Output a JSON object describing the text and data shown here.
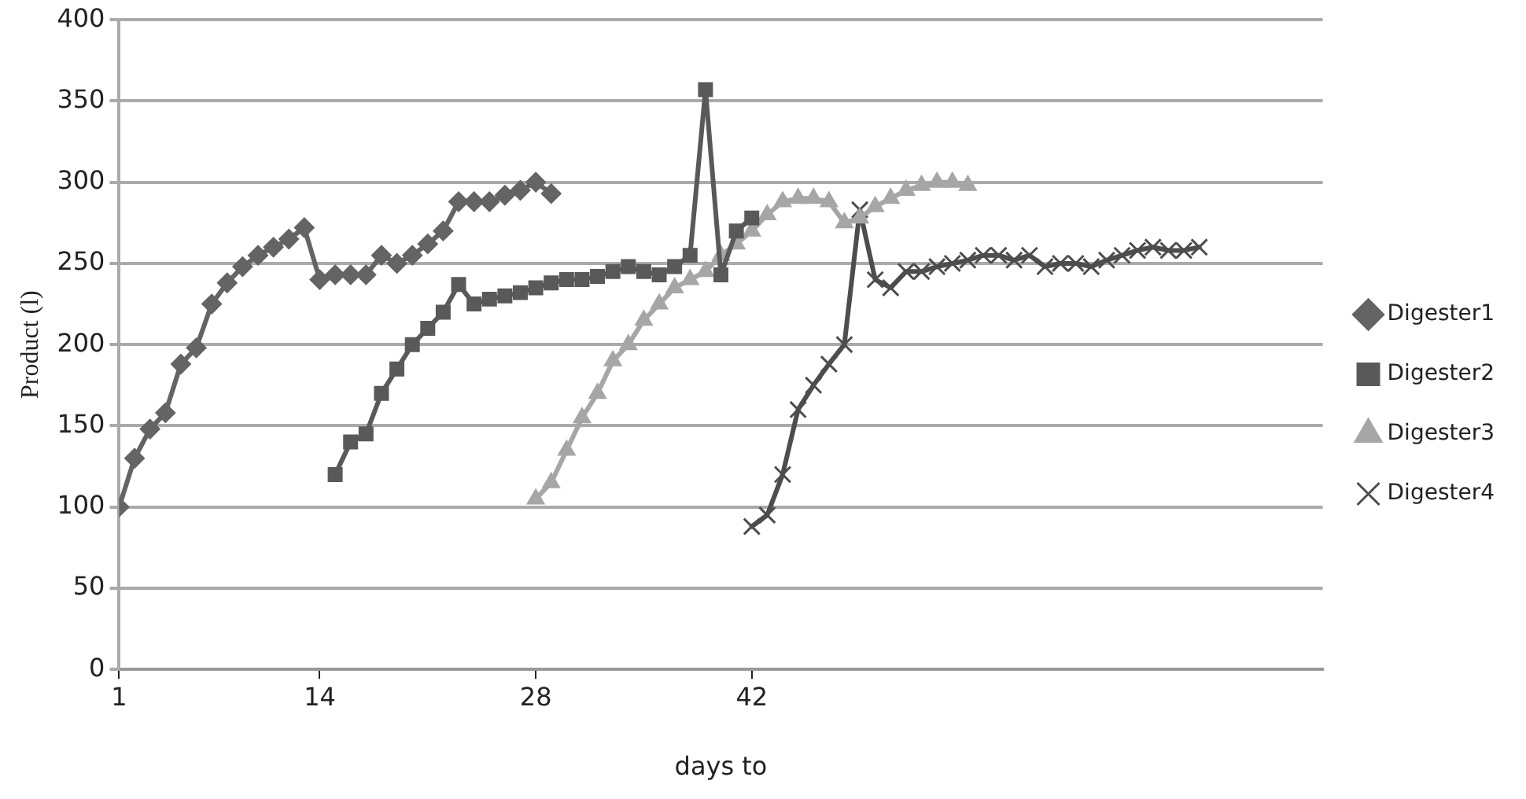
{
  "chart_data": {
    "type": "line",
    "xlabel": "days to",
    "ylabel": "Product (l)",
    "xlim": [
      1,
      79
    ],
    "xticks": [
      1,
      14,
      28,
      42
    ],
    "ylim": [
      0,
      400
    ],
    "yticks": [
      0,
      50,
      100,
      150,
      200,
      250,
      300,
      350,
      400
    ],
    "grid": "y",
    "legend": "right",
    "line_style": "solid",
    "series": [
      {
        "name": "Digester1",
        "color": "#646464",
        "marker": "diamond",
        "x": [
          1,
          2,
          3,
          4,
          5,
          6,
          7,
          8,
          9,
          10,
          11,
          12,
          13,
          14,
          15,
          16,
          17,
          18,
          19,
          20,
          21,
          22,
          23,
          24,
          25,
          26,
          27,
          28,
          29
        ],
        "values": [
          100,
          130,
          148,
          158,
          188,
          198,
          225,
          238,
          248,
          255,
          260,
          265,
          272,
          240,
          243,
          243,
          243,
          255,
          250,
          255,
          262,
          270,
          288,
          288,
          288,
          292,
          295,
          300,
          293
        ]
      },
      {
        "name": "Digester2",
        "color": "#595959",
        "marker": "square",
        "x": [
          15,
          16,
          17,
          18,
          19,
          20,
          21,
          22,
          23,
          24,
          25,
          26,
          27,
          28,
          29,
          30,
          31,
          32,
          33,
          34,
          35,
          36,
          37,
          38,
          39,
          40,
          41,
          42
        ],
        "values": [
          120,
          140,
          145,
          170,
          185,
          200,
          210,
          220,
          237,
          225,
          228,
          230,
          232,
          235,
          238,
          240,
          240,
          242,
          245,
          248,
          245,
          243,
          248,
          255,
          357,
          243,
          270,
          278
        ]
      },
      {
        "name": "Digester3",
        "color": "#a6a6a6",
        "marker": "triangle",
        "x": [
          28,
          29,
          30,
          31,
          32,
          33,
          34,
          35,
          36,
          37,
          38,
          39,
          40,
          41,
          42,
          43,
          44,
          45,
          46,
          47,
          48,
          49,
          50,
          51,
          52,
          53,
          54,
          55,
          56
        ],
        "values": [
          105,
          115,
          135,
          155,
          170,
          190,
          200,
          215,
          225,
          235,
          240,
          245,
          255,
          262,
          270,
          280,
          288,
          290,
          290,
          288,
          275,
          278,
          285,
          290,
          295,
          298,
          300,
          300,
          298
        ]
      },
      {
        "name": "Digester4",
        "color": "#4d4d4d",
        "marker": "cross",
        "x": [
          42,
          43,
          44,
          45,
          46,
          47,
          48,
          49,
          50,
          51,
          52,
          53,
          54,
          55,
          56,
          57,
          58,
          59,
          60,
          61,
          62,
          63,
          64,
          65,
          66,
          67,
          68,
          69,
          70,
          71
        ],
        "values": [
          88,
          95,
          120,
          160,
          175,
          188,
          200,
          283,
          240,
          235,
          245,
          245,
          248,
          250,
          252,
          255,
          255,
          252,
          255,
          248,
          250,
          250,
          248,
          252,
          255,
          258,
          260,
          258,
          258,
          260
        ]
      }
    ]
  }
}
